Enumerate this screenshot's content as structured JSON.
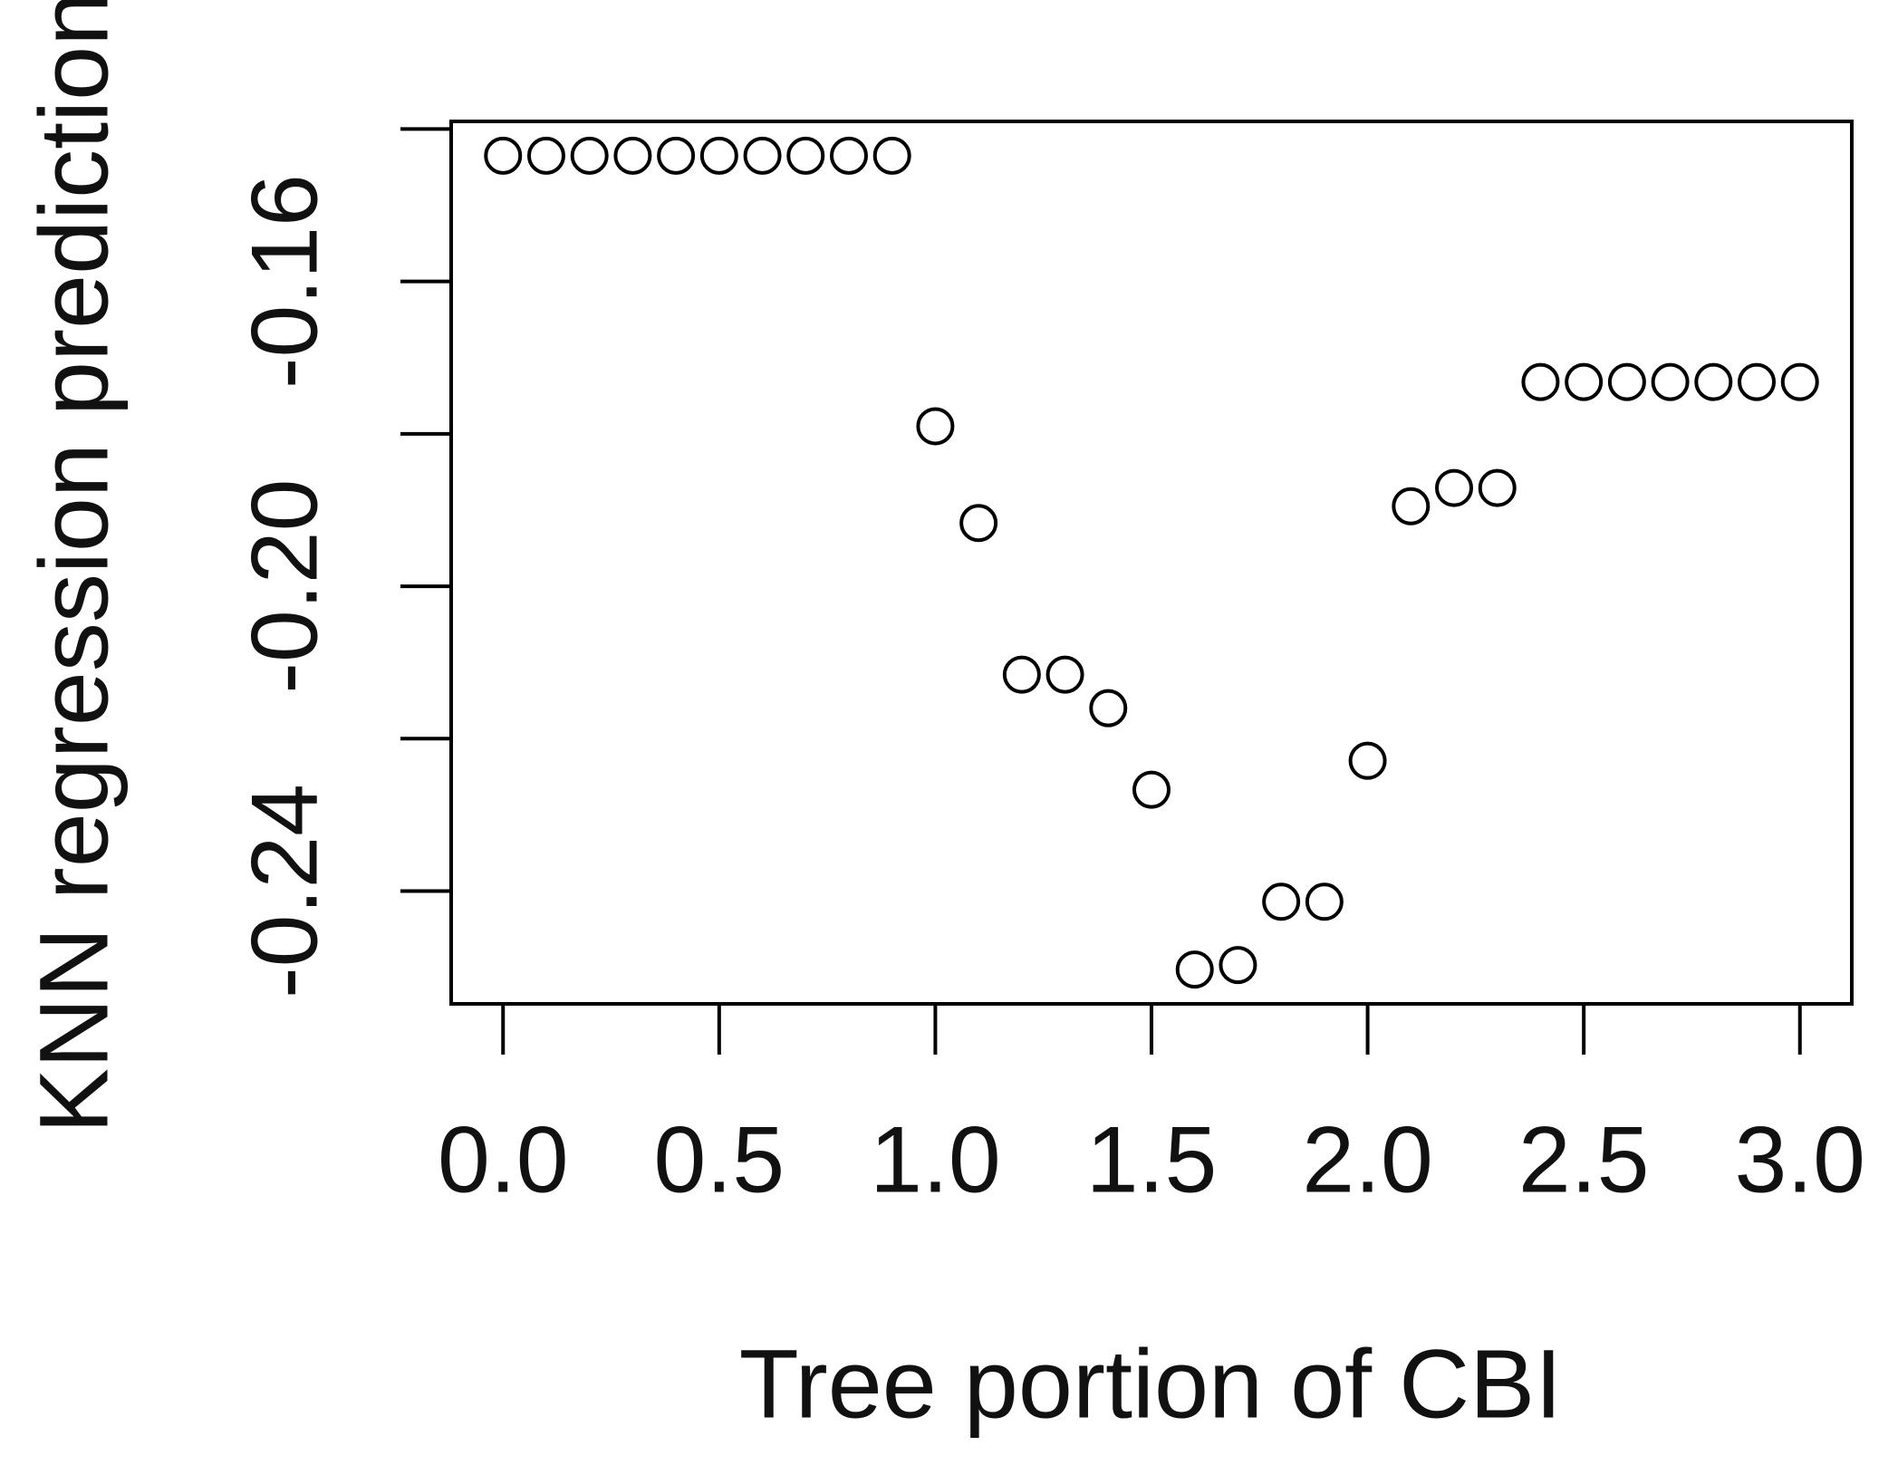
{
  "chart_data": {
    "type": "scatter",
    "xlabel": "Tree portion of CBI",
    "ylabel": "KNN regression prediction",
    "x": [
      0,
      0.1,
      0.2,
      0.3,
      0.4,
      0.5,
      0.6,
      0.7,
      0.8,
      0.9,
      1.0,
      1.1,
      1.2,
      1.3,
      1.4,
      1.5,
      1.6,
      1.7,
      1.8,
      1.9,
      2.0,
      2.1,
      2.2,
      2.3,
      2.4,
      2.5,
      2.6,
      2.7,
      2.8,
      2.9,
      3.0
    ],
    "values": [
      -0.1435,
      -0.1435,
      -0.1435,
      -0.1435,
      -0.1435,
      -0.1435,
      -0.1435,
      -0.1435,
      -0.1435,
      -0.1435,
      -0.179,
      -0.1917,
      -0.2116,
      -0.2116,
      -0.216,
      -0.2267,
      -0.2503,
      -0.2497,
      -0.2414,
      -0.2414,
      -0.2229,
      -0.1895,
      -0.1871,
      -0.1871,
      -0.1732,
      -0.1732,
      -0.1732,
      -0.1732,
      -0.1732,
      -0.1732,
      -0.1732
    ],
    "color": "#000000",
    "xlim": [
      -0.12,
      3.12
    ],
    "ylim": [
      -0.2548,
      -0.139
    ],
    "xticks": [
      {
        "value": 0,
        "label": "0.0"
      },
      0.5,
      {
        "value": 1,
        "label": "1.0"
      },
      1.5,
      {
        "value": 2,
        "label": "2.0"
      },
      2.5,
      {
        "value": 3,
        "label": "3.0"
      }
    ],
    "yticks": [
      {
        "value": -0.16,
        "label": "-0.16"
      },
      {
        "value": -0.2,
        "label": "-0.20"
      },
      {
        "value": -0.24,
        "label": "-0.24"
      }
    ],
    "minor_yticks": [
      -0.14,
      -0.18,
      -0.22
    ],
    "grid": false
  }
}
